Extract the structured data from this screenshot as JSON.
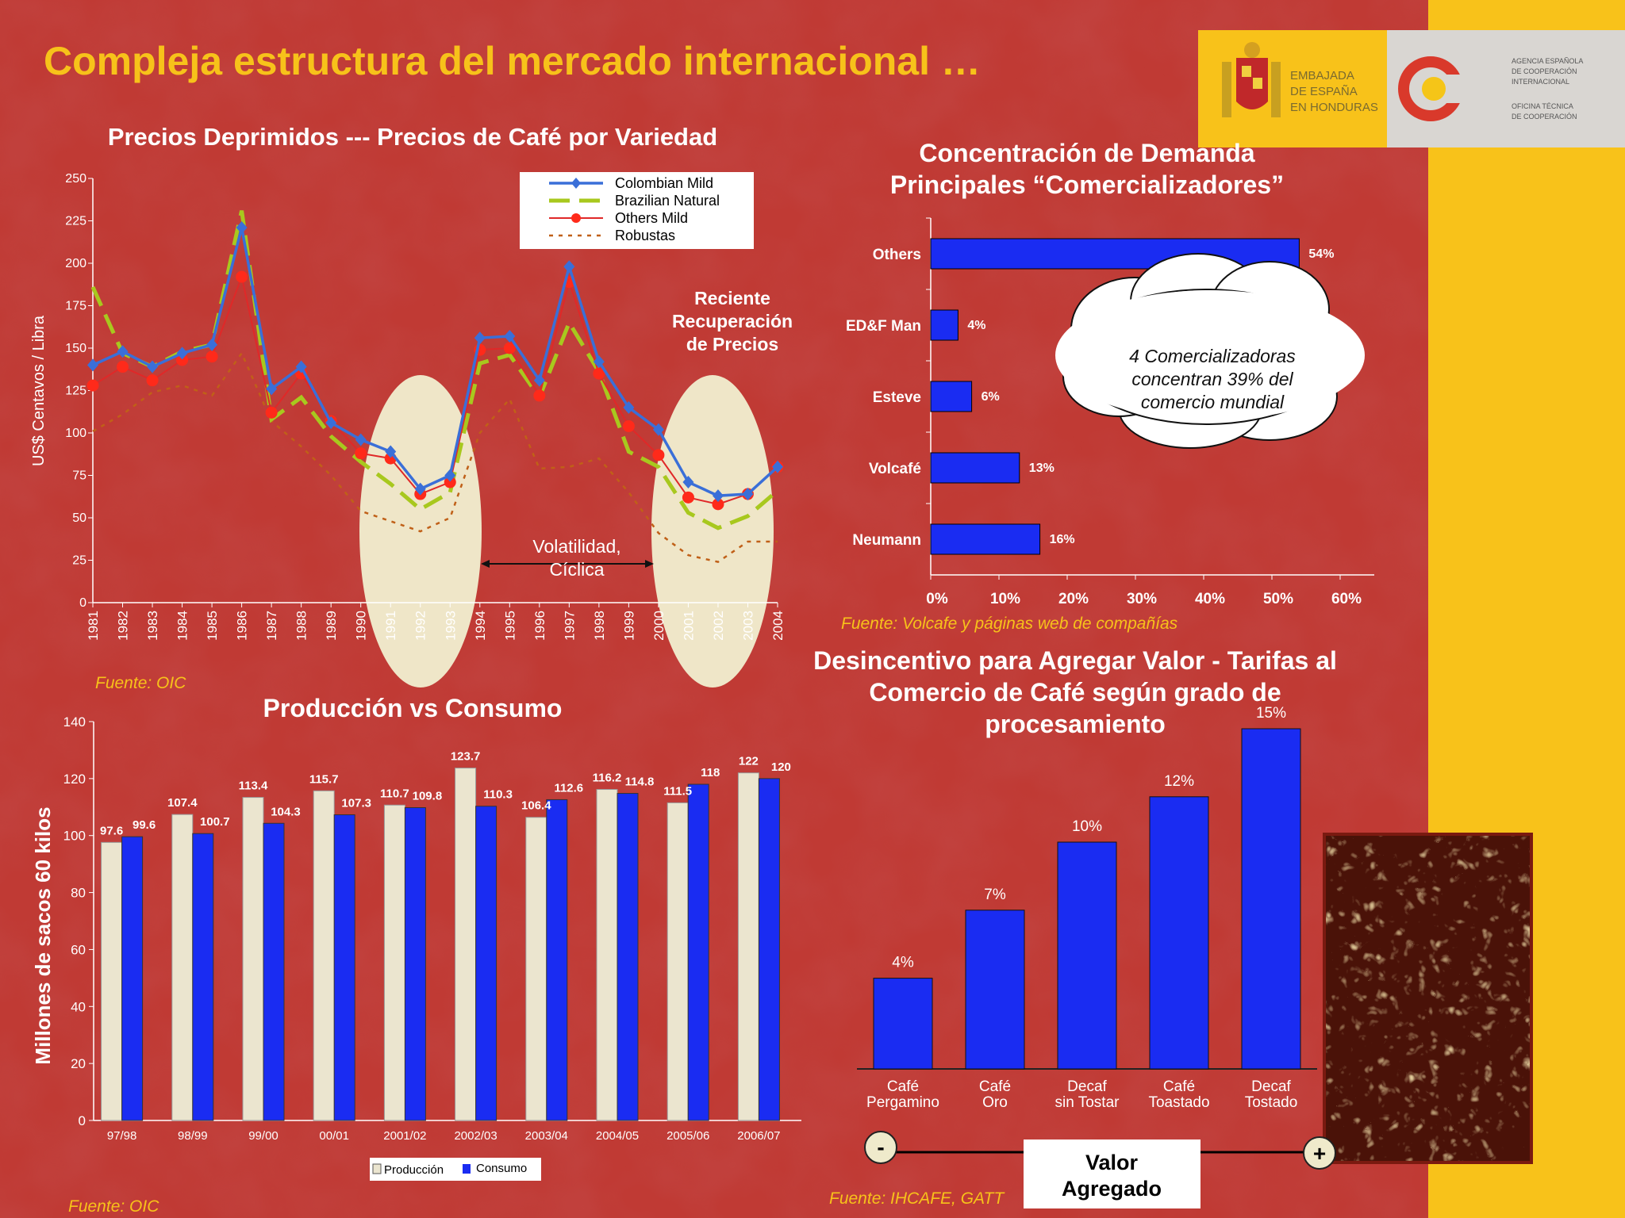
{
  "page": {
    "title": "Compleja estructura del mercado internacional …",
    "colors": {
      "background": "#b8302c",
      "accent": "#f7c21a",
      "bar_blue": "#1a2cf2",
      "bar_cream": "#ebe5cf"
    }
  },
  "logos": {
    "embassy_lines": [
      "EMBAJADA",
      "DE ESPAÑA",
      "EN HONDURAS"
    ],
    "agency_lines": [
      "AGENCIA ESPAÑOLA",
      "DE COOPERACIÓN",
      "INTERNACIONAL",
      "OFICINA TÉCNICA",
      "DE COOPERACIÓN"
    ]
  },
  "panels": {
    "prices": {
      "title": "Precios Deprimidos --- Precios de Café por Variedad",
      "source": "Fuente: OIC",
      "annotation_recovery": [
        "Reciente",
        "Recuperación",
        "de Precios"
      ],
      "annotation_volatility": [
        "Volatilidad,",
        "Cíclica"
      ]
    },
    "demand": {
      "title_lines": [
        "Concentración de Demanda",
        "Principales “Comercializadores”"
      ],
      "source": "Fuente: Volcafe y páginas web de compañías",
      "callout": [
        "4 Comercializadoras",
        "concentran 39% del",
        "comercio mundial"
      ]
    },
    "production": {
      "title": "Producción vs Consumo",
      "source": "Fuente: OIC"
    },
    "tariffs": {
      "title_lines": [
        "Desincentivo para Agregar Valor - Tarifas  al",
        "Comercio de Café según grado de",
        "procesamiento"
      ],
      "source": "Fuente: IHCAFE, GATT",
      "arrow_minus": "-",
      "arrow_plus": "+",
      "arrow_label": [
        "Valor",
        "Agregado"
      ]
    }
  },
  "chart_data": [
    {
      "type": "line",
      "ylabel": "US$ Centavos / Libra",
      "ylim": [
        0,
        250
      ],
      "y_ticks": [
        0,
        25,
        50,
        75,
        100,
        125,
        150,
        175,
        200,
        225,
        250
      ],
      "legend_placement": "top-right",
      "x": [
        "1981",
        "1982",
        "1983",
        "1984",
        "1985",
        "1986",
        "1987",
        "1988",
        "1989",
        "1990",
        "1991",
        "1992",
        "1993",
        "1994",
        "1995",
        "1996",
        "1997",
        "1998",
        "1999",
        "2000",
        "2001",
        "2002",
        "2003",
        "2004"
      ],
      "series": [
        {
          "name": "Colombian Mild",
          "color": "#3a6fd8",
          "style": "solid-diamond",
          "values": [
            140,
            148,
            139,
            147,
            152,
            221,
            126,
            139,
            106,
            96,
            89,
            67,
            75,
            156,
            157,
            131,
            198,
            142,
            115,
            102,
            71,
            63,
            64,
            80
          ]
        },
        {
          "name": "Brazilian Natural",
          "color": "#a8c81e",
          "style": "dash",
          "values": [
            186,
            147,
            139,
            148,
            152,
            231,
            108,
            121,
            98,
            83,
            70,
            55,
            65,
            141,
            146,
            121,
            165,
            136,
            89,
            80,
            53,
            44,
            51,
            66
          ]
        },
        {
          "name": "Others Mild",
          "color": "#e02828",
          "style": "solid-circle",
          "values": [
            128,
            139,
            131,
            143,
            145,
            192,
            112,
            135,
            107,
            88,
            85,
            64,
            71,
            149,
            150,
            122,
            189,
            135,
            104,
            87,
            62,
            58,
            64,
            80
          ]
        },
        {
          "name": "Robustas",
          "color": "#c06018",
          "style": "dot",
          "values": [
            101,
            111,
            124,
            128,
            122,
            147,
            107,
            92,
            75,
            54,
            48,
            42,
            50,
            100,
            120,
            79,
            80,
            85,
            65,
            41,
            28,
            24,
            36,
            36
          ]
        }
      ]
    },
    {
      "type": "bar",
      "orientation": "horizontal",
      "categories": [
        "Others",
        "ED&F Man",
        "Esteve",
        "Volcafé",
        "Neumann"
      ],
      "values": [
        54,
        4,
        6,
        13,
        16
      ],
      "value_labels": [
        "54%",
        "4%",
        "6%",
        "13%",
        "16%"
      ],
      "xlim": [
        0,
        60
      ],
      "x_ticks": [
        "0%",
        "10%",
        "20%",
        "30%",
        "40%",
        "50%",
        "60%"
      ]
    },
    {
      "type": "bar",
      "ylabel": "Millones de sacos  60 kilos",
      "ylim": [
        0,
        140
      ],
      "y_ticks": [
        0,
        20,
        40,
        60,
        80,
        100,
        120,
        140
      ],
      "legend_placement": "bottom",
      "categories": [
        "97/98",
        "98/99",
        "99/00",
        "00/01",
        "2001/02",
        "2002/03",
        "2003/04",
        "2004/05",
        "2005/06",
        "2006/07"
      ],
      "series": [
        {
          "name": "Producción",
          "color": "#ebe5cf",
          "values": [
            97.6,
            107.4,
            113.4,
            115.7,
            110.7,
            123.7,
            106.4,
            116.2,
            111.5,
            122
          ],
          "labels": [
            "97.6",
            "107.4",
            "113.4",
            "115.7",
            "110.7",
            "123.7",
            "106.4",
            "116.2",
            "111.5",
            "122"
          ]
        },
        {
          "name": "Consumo",
          "color": "#1a2cf2",
          "values": [
            99.6,
            100.7,
            104.3,
            107.3,
            109.8,
            110.3,
            112.6,
            114.8,
            118,
            120
          ],
          "labels": [
            "99.6",
            "100.7",
            "104.3",
            "107.3",
            "109.8",
            "110.3",
            "112.6",
            "114.8",
            "118",
            "120"
          ]
        }
      ]
    },
    {
      "type": "bar",
      "categories": [
        [
          "Café",
          "Pergamino"
        ],
        [
          "Café",
          "Oro"
        ],
        [
          "Decaf",
          "sin Tostar"
        ],
        [
          "Café",
          "Toastado"
        ],
        [
          "Decaf",
          "Tostado"
        ]
      ],
      "values": [
        4,
        7,
        10,
        12,
        15
      ],
      "value_labels": [
        "4%",
        "7%",
        "10%",
        "12%",
        "15%"
      ]
    }
  ]
}
